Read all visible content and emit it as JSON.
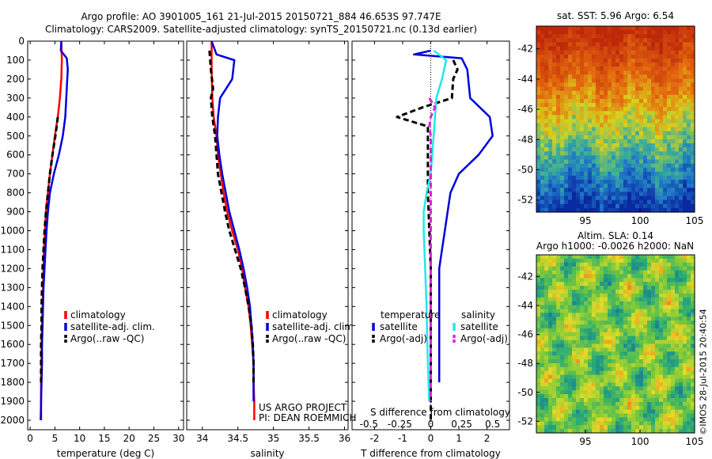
{
  "header": {
    "line1": "Argo profile: AO 3901005_161 21-Jul-2015 20150721_884 46.653S 97.747E",
    "line2": "Climatology: CARS2009. Satellite-adjusted climatology: synTS_20150721.nc (0.13d earlier)"
  },
  "colors": {
    "climatology": "#ff0000",
    "satellite": "#0000dd",
    "argo": "#000000",
    "sal_satellite": "#22e8e8",
    "sal_argo": "#e020e0"
  },
  "chart_data": [
    {
      "type": "line",
      "id": "temperature",
      "xlabel": "temperature (deg C)",
      "ylabel": "",
      "xlim": [
        -0.5,
        31
      ],
      "ylim": [
        2050,
        0
      ],
      "xticks": [
        0,
        5,
        10,
        15,
        20,
        25,
        30
      ],
      "yticks": [
        0,
        100,
        200,
        300,
        400,
        500,
        600,
        700,
        800,
        900,
        1000,
        1100,
        1200,
        1300,
        1400,
        1500,
        1600,
        1700,
        1800,
        1900,
        2000
      ],
      "legend_labels": [
        "climatology",
        "satellite-adj. clim.",
        "Argo(..raw -QC)"
      ],
      "series": [
        {
          "name": "climatology",
          "dash": false,
          "x": [
            6.3,
            6.4,
            6.3,
            6.0,
            5.6,
            5.0,
            4.5,
            4.0,
            3.6,
            3.2,
            3.0,
            2.8,
            2.7,
            2.6,
            2.5,
            2.4,
            2.3,
            2.3,
            2.2,
            2.2,
            2.1
          ],
          "y": [
            0,
            100,
            200,
            300,
            400,
            500,
            600,
            700,
            800,
            900,
            1000,
            1100,
            1200,
            1300,
            1400,
            1500,
            1600,
            1700,
            1800,
            1900,
            2000
          ]
        },
        {
          "name": "satellite-adj. clim.",
          "dash": false,
          "x": [
            6.3,
            6.2,
            7.4,
            7.6,
            7.5,
            7.3,
            7.1,
            6.6,
            5.8,
            4.8,
            4.0,
            3.6,
            3.3,
            3.1,
            2.9,
            2.7,
            2.6,
            2.5,
            2.4,
            2.4,
            2.3,
            2.2,
            2.2
          ],
          "y": [
            0,
            50,
            90,
            150,
            200,
            300,
            400,
            500,
            600,
            700,
            800,
            900,
            1000,
            1100,
            1200,
            1300,
            1400,
            1500,
            1600,
            1700,
            1800,
            1900,
            2000
          ]
        },
        {
          "name": "Argo(..raw -QC)",
          "dash": true,
          "x": [
            5.6,
            5.1,
            4.5,
            4.0,
            3.6,
            3.2,
            2.9,
            2.7,
            2.5,
            2.4,
            2.3,
            2.3,
            2.2,
            2.2,
            2.2
          ],
          "y": [
            400,
            500,
            600,
            700,
            800,
            900,
            1000,
            1100,
            1200,
            1300,
            1400,
            1500,
            1600,
            1700,
            1800
          ]
        }
      ]
    },
    {
      "type": "line",
      "id": "salinity",
      "xlabel": "salinity",
      "ylabel": "",
      "xlim": [
        33.78,
        36.05
      ],
      "ylim": [
        2050,
        0
      ],
      "xticks": [
        34,
        34.5,
        35,
        35.5,
        36
      ],
      "xtick_labels": [
        "34",
        "34.5",
        "35",
        "35.5",
        "36"
      ],
      "legend_labels": [
        "climatology",
        "satellite-adj. clim.",
        "Argo(..raw -QC)"
      ],
      "series": [
        {
          "name": "climatology",
          "dash": false,
          "x": [
            34.13,
            34.13,
            34.13,
            34.14,
            34.16,
            34.2,
            34.22,
            34.26,
            34.3,
            34.35,
            34.42,
            34.5,
            34.56,
            34.6,
            34.65,
            34.68,
            34.7,
            34.72,
            34.72,
            34.73,
            34.73
          ],
          "y": [
            0,
            100,
            150,
            300,
            400,
            500,
            600,
            700,
            800,
            900,
            1000,
            1100,
            1200,
            1300,
            1400,
            1500,
            1600,
            1700,
            1800,
            1900,
            2000
          ]
        },
        {
          "name": "satellite-adj. clim.",
          "dash": false,
          "x": [
            34.13,
            34.2,
            34.45,
            34.42,
            34.25,
            34.22,
            34.21,
            34.24,
            34.28,
            34.33,
            34.38,
            34.45,
            34.52,
            34.58,
            34.63,
            34.67,
            34.69,
            34.71,
            34.72,
            34.72,
            34.72
          ],
          "y": [
            0,
            70,
            100,
            200,
            300,
            400,
            500,
            600,
            700,
            800,
            900,
            1000,
            1100,
            1200,
            1300,
            1400,
            1500,
            1600,
            1700,
            1800,
            1900
          ]
        },
        {
          "name": "Argo(..raw -QC)",
          "dash": true,
          "x": [
            34.1,
            34.12,
            34.15,
            34.12,
            34.14,
            34.18,
            34.2,
            34.22,
            34.27,
            34.32,
            34.38,
            34.46,
            34.54,
            34.6,
            34.65,
            34.69,
            34.71,
            34.72,
            34.72
          ],
          "y": [
            50,
            150,
            250,
            300,
            400,
            500,
            600,
            700,
            800,
            900,
            1000,
            1100,
            1200,
            1300,
            1400,
            1500,
            1600,
            1700,
            1800
          ]
        }
      ],
      "annotations": [
        "US ARGO PROJECT",
        "PI: DEAN ROEMMICH"
      ]
    },
    {
      "type": "line",
      "id": "difference",
      "xlabel": "T difference from climatology",
      "xlabel_top": "S difference from climatology",
      "xlim": [
        -2.8,
        2.8
      ],
      "ylim": [
        2050,
        0
      ],
      "xticks": [
        -2,
        -1,
        0,
        1,
        2
      ],
      "s_ticks": [
        -0.5,
        -0.25,
        0,
        0.25,
        0.5
      ],
      "s_tick_labels": [
        "-0.5",
        "-0.25",
        "0",
        "0.25",
        "0.5"
      ],
      "legend": {
        "temperature_title": "temperature",
        "salinity_title": "salinity",
        "items": [
          "satellite",
          "Argo(-adj)",
          "satellite",
          "Argo(-adj)"
        ]
      },
      "series": [
        {
          "name": "satellite",
          "group": "temperature",
          "dash": false,
          "x": [
            0,
            -0.6,
            1.1,
            1.3,
            1.4,
            2.1,
            2.2,
            1.7,
            1.0,
            0.7,
            0.6,
            0.5,
            0.4,
            0.3,
            0.3,
            0.3,
            0.3,
            0.3,
            0.3,
            0.3
          ],
          "y": [
            50,
            70,
            90,
            150,
            300,
            400,
            500,
            600,
            700,
            800,
            900,
            1000,
            1100,
            1200,
            1300,
            1400,
            1500,
            1600,
            1700,
            1800
          ]
        },
        {
          "name": "Argo(-adj)",
          "group": "temperature",
          "dash": true,
          "x": [
            0.8,
            0.95,
            0.8,
            0.75,
            -0.3,
            -1.2,
            -0.1,
            -0.1,
            -0.1,
            -0.1,
            -0.05,
            0,
            0,
            0,
            0,
            0
          ],
          "y": [
            100,
            150,
            200,
            300,
            350,
            400,
            450,
            500,
            600,
            800,
            1000,
            1200,
            1400,
            1600,
            1800,
            2000
          ]
        },
        {
          "name": "satellite",
          "group": "salinity",
          "dash": false,
          "x": [
            0.1,
            0.2,
            0.55,
            0.4,
            0.2,
            0.15,
            0.1,
            0.05,
            0.0,
            -0.15,
            -0.25,
            -0.25,
            -0.2,
            -0.15,
            -0.12,
            -0.1,
            -0.08,
            -0.06
          ],
          "y": [
            50,
            60,
            100,
            200,
            300,
            400,
            500,
            600,
            700,
            800,
            900,
            1000,
            1200,
            1400,
            1600,
            1700,
            1800,
            1900
          ]
        },
        {
          "name": "Argo(-adj)",
          "group": "salinity",
          "dash": true,
          "x": [
            -0.05,
            0.15,
            0.0,
            -0.05,
            0.0,
            0.0,
            0.0,
            0.0,
            0.0,
            0.0
          ],
          "y": [
            300,
            350,
            400,
            450,
            500,
            600,
            800,
            1000,
            1400,
            1900
          ]
        }
      ]
    },
    {
      "type": "heatmap",
      "id": "sst-map",
      "title": "sat. SST: 5.96 Argo: 6.54",
      "xticks": [
        95,
        100,
        105
      ],
      "yticks": [
        -42,
        -44,
        -46,
        -48,
        -50,
        -52
      ],
      "xlim": [
        90.5,
        105
      ],
      "ylim": [
        -52.8,
        -40.5
      ]
    },
    {
      "type": "heatmap",
      "id": "sla-map",
      "title_line1": "Altim. SLA: 0.14",
      "title_line2": "Argo h1000: -0.0026 h2000: NaN",
      "xticks": [
        95,
        100,
        105
      ],
      "yticks": [
        -42,
        -44,
        -46,
        -48,
        -50,
        -52
      ],
      "xlim": [
        90.5,
        105
      ],
      "ylim": [
        -52.8,
        -40.5
      ]
    }
  ],
  "footer_vertical": "©IMOS 28-Jul-2015 20:40:54"
}
